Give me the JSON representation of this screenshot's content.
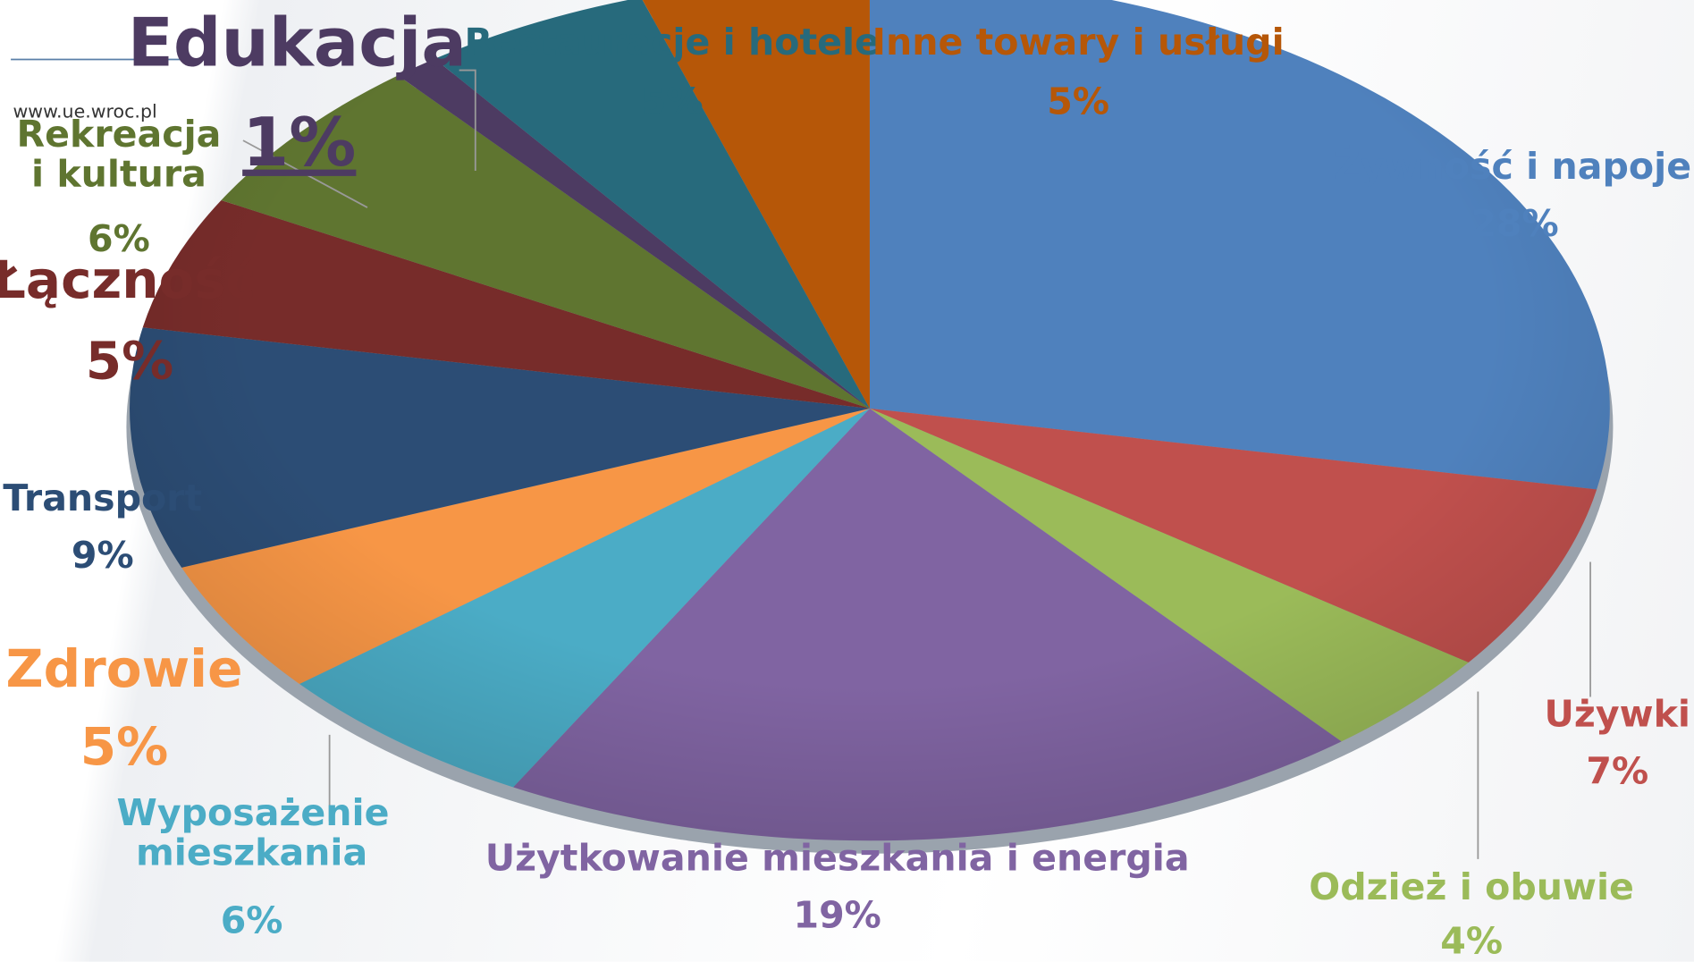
{
  "site": "www.ue.wroc.pl",
  "chart_data": {
    "type": "pie",
    "categories": [
      "Żywność i napoje",
      "Używki",
      "Odzież i obuwie",
      "Użytkowanie mieszkania i  energia",
      "Wyposażenie mieszkania",
      "Zdrowie",
      "Transport",
      "Łączność",
      "Rekreacja i kultura",
      "Edukacja",
      "Restauracje i hotele",
      "Inne towary i usługi"
    ],
    "values": [
      28,
      7,
      4,
      19,
      6,
      5,
      9,
      5,
      6,
      1,
      5,
      5
    ],
    "value_labels": [
      "28%",
      "7%",
      "4%",
      "19%",
      "6%",
      "5%",
      "9%",
      "5%",
      "6%",
      "1%",
      "5%",
      "5%"
    ],
    "colors": [
      "#4f81bd",
      "#c0504d",
      "#9bbb59",
      "#8064a2",
      "#4bacc6",
      "#f79646",
      "#2c4d75",
      "#772c2a",
      "#5f7530",
      "#4d3b62",
      "#276a7c",
      "#b65708"
    ]
  }
}
